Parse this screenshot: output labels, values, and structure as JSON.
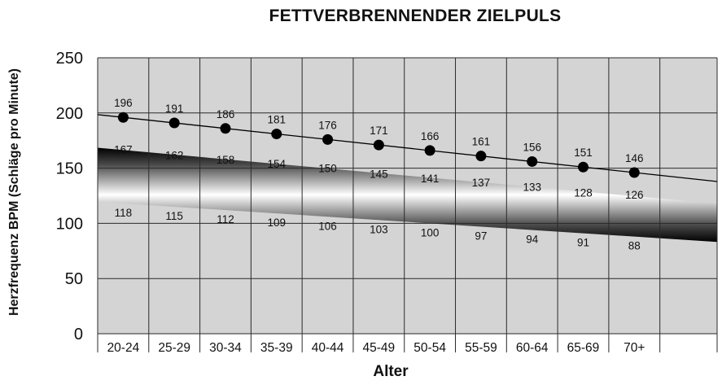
{
  "chart_data": {
    "type": "line",
    "title": "FETTVERBRENNENDER ZIELPULS",
    "xlabel": "Alter",
    "ylabel": "Herzfrequenz BPM (Schläge pro Minute)",
    "categories": [
      "20-24",
      "25-29",
      "30-34",
      "35-39",
      "40-44",
      "45-49",
      "50-54",
      "55-59",
      "60-64",
      "65-69",
      "70+"
    ],
    "ylim": [
      0,
      250
    ],
    "yticks": [
      0,
      50,
      100,
      150,
      200,
      250
    ],
    "grid": true,
    "series": [
      {
        "key": "max",
        "values": [
          196,
          191,
          186,
          181,
          176,
          171,
          166,
          161,
          156,
          151,
          146
        ],
        "color": "#000000",
        "marker": "circle"
      },
      {
        "key": "upper",
        "values": [
          167,
          162,
          158,
          154,
          150,
          145,
          141,
          137,
          133,
          128,
          126
        ],
        "color": "#000000"
      },
      {
        "key": "lower",
        "values": [
          118,
          115,
          112,
          109,
          106,
          103,
          100,
          97,
          94,
          91,
          88
        ],
        "color": "#000000"
      }
    ],
    "band": {
      "between": [
        "upper",
        "lower"
      ],
      "color_edge": "#000000",
      "color_center": "#ffffff"
    },
    "background_color": "#d4d4d4",
    "grid_color": "#2a2a2a"
  }
}
